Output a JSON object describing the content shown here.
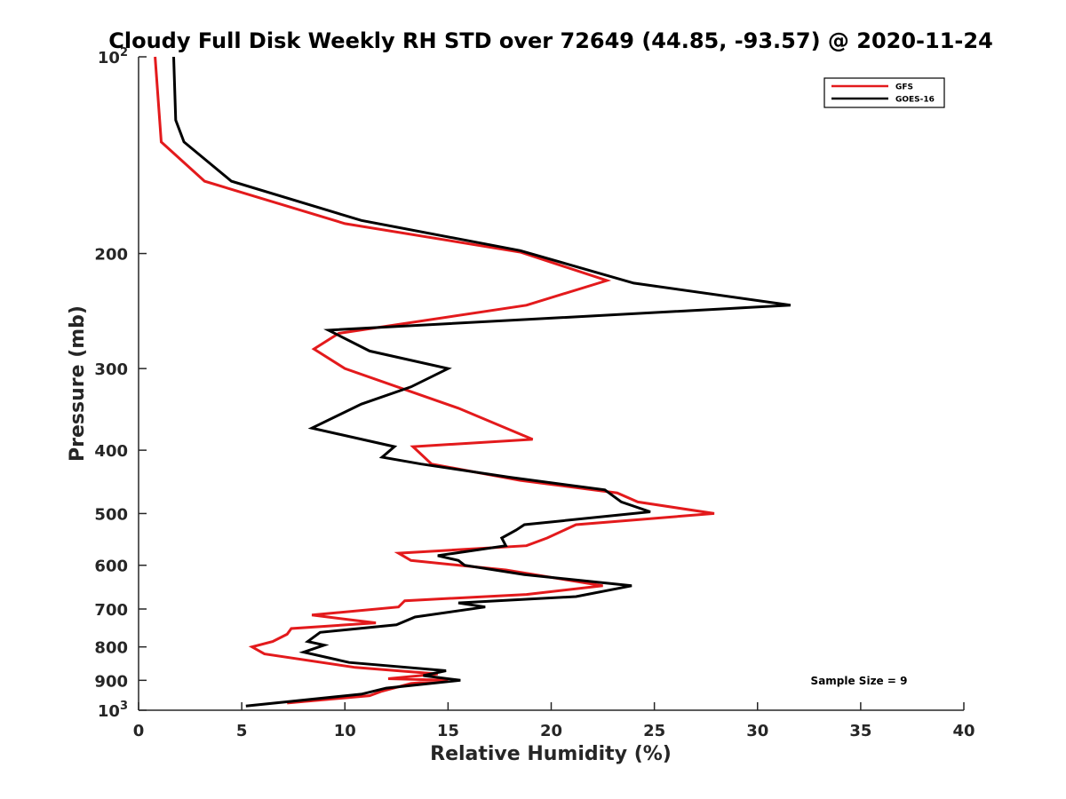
{
  "chart_data": {
    "type": "line",
    "title": "Cloudy Full Disk Weekly RH STD over 72649 (44.85, -93.57) @ 2020-11-24",
    "xlabel": "Relative Humidity (%)",
    "ylabel": "Pressure (mb)",
    "xlim": [
      0,
      40
    ],
    "ylim": [
      100,
      1000
    ],
    "y_scale": "log",
    "y_reversed": true,
    "x_ticks": [
      "0",
      "5",
      "10",
      "15",
      "20",
      "25",
      "30",
      "35",
      "40"
    ],
    "y_ticks": [
      {
        "value": 100,
        "base": "10",
        "exp": "2"
      },
      {
        "value": 200,
        "base": "200",
        "exp": ""
      },
      {
        "value": 300,
        "base": "300",
        "exp": ""
      },
      {
        "value": 400,
        "base": "400",
        "exp": ""
      },
      {
        "value": 500,
        "base": "500",
        "exp": ""
      },
      {
        "value": 600,
        "base": "600",
        "exp": ""
      },
      {
        "value": 700,
        "base": "700",
        "exp": ""
      },
      {
        "value": 800,
        "base": "800",
        "exp": ""
      },
      {
        "value": 900,
        "base": "900",
        "exp": ""
      },
      {
        "value": 1000,
        "base": "10",
        "exp": "3"
      }
    ],
    "grid": false,
    "legend_position": "top-right",
    "annotation": "Sample Size = 9",
    "series": [
      {
        "name": "GFS",
        "color": "#e31a1c",
        "points": [
          [
            0.8,
            100
          ],
          [
            1.1,
            135
          ],
          [
            3.2,
            155
          ],
          [
            10.0,
            180
          ],
          [
            18.5,
            199
          ],
          [
            22.7,
            220
          ],
          [
            18.8,
            240
          ],
          [
            9.7,
            265
          ],
          [
            8.5,
            280
          ],
          [
            10.0,
            300
          ],
          [
            15.5,
            345
          ],
          [
            19.1,
            385
          ],
          [
            13.3,
            395
          ],
          [
            14.2,
            420
          ],
          [
            18.5,
            445
          ],
          [
            23.2,
            465
          ],
          [
            24.2,
            480
          ],
          [
            27.9,
            500
          ],
          [
            21.2,
            520
          ],
          [
            19.8,
            545
          ],
          [
            18.8,
            560
          ],
          [
            12.6,
            575
          ],
          [
            13.2,
            590
          ],
          [
            17.8,
            610
          ],
          [
            22.5,
            645
          ],
          [
            18.8,
            665
          ],
          [
            12.9,
            680
          ],
          [
            12.6,
            695
          ],
          [
            8.4,
            715
          ],
          [
            11.5,
            735
          ],
          [
            7.4,
            750
          ],
          [
            7.2,
            765
          ],
          [
            6.5,
            785
          ],
          [
            5.5,
            800
          ],
          [
            6.1,
            820
          ],
          [
            10.5,
            860
          ],
          [
            14.5,
            880
          ],
          [
            12.1,
            895
          ],
          [
            15.0,
            900
          ],
          [
            13.2,
            910
          ],
          [
            11.8,
            935
          ],
          [
            11.2,
            950
          ],
          [
            7.2,
            975
          ]
        ]
      },
      {
        "name": "GOES-16",
        "color": "#000000",
        "points": [
          [
            1.7,
            100
          ],
          [
            1.8,
            125
          ],
          [
            2.2,
            135
          ],
          [
            4.5,
            155
          ],
          [
            10.8,
            178
          ],
          [
            18.5,
            198
          ],
          [
            24.0,
            222
          ],
          [
            31.6,
            240
          ],
          [
            9.2,
            262
          ],
          [
            11.2,
            282
          ],
          [
            15.0,
            300
          ],
          [
            13.2,
            320
          ],
          [
            10.8,
            340
          ],
          [
            8.4,
            370
          ],
          [
            12.4,
            395
          ],
          [
            12.0,
            405
          ],
          [
            11.8,
            410
          ],
          [
            13.7,
            420
          ],
          [
            18.0,
            440
          ],
          [
            22.6,
            460
          ],
          [
            23.4,
            480
          ],
          [
            24.8,
            497
          ],
          [
            18.7,
            520
          ],
          [
            18.3,
            530
          ],
          [
            17.6,
            545
          ],
          [
            17.8,
            560
          ],
          [
            14.5,
            580
          ],
          [
            15.5,
            590
          ],
          [
            15.8,
            600
          ],
          [
            18.7,
            620
          ],
          [
            23.9,
            645
          ],
          [
            21.2,
            670
          ],
          [
            15.5,
            685
          ],
          [
            16.8,
            695
          ],
          [
            13.4,
            720
          ],
          [
            12.5,
            740
          ],
          [
            8.8,
            760
          ],
          [
            8.2,
            785
          ],
          [
            9.0,
            795
          ],
          [
            8.0,
            815
          ],
          [
            10.2,
            845
          ],
          [
            14.9,
            870
          ],
          [
            13.8,
            885
          ],
          [
            15.6,
            900
          ],
          [
            12.0,
            925
          ],
          [
            10.8,
            945
          ],
          [
            5.2,
            985
          ]
        ]
      }
    ]
  }
}
